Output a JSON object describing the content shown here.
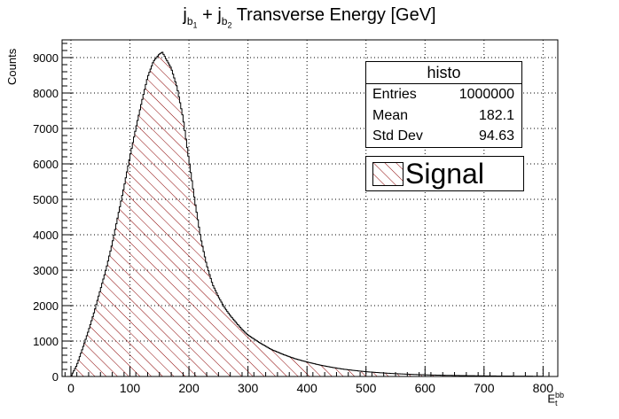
{
  "chart_data": {
    "type": "histogram",
    "title": {
      "base": "j",
      "sub1": "b",
      "subsub1": "1",
      "plus": "+ j",
      "sub2": "b",
      "subsub2": "2",
      "rest": "Transverse Energy [GeV]"
    },
    "ylabel": "Counts",
    "xlabel": {
      "base": "E",
      "sup": "bb",
      "sub": "t"
    },
    "xlim": [
      -15,
      825
    ],
    "ylim": [
      0,
      9500
    ],
    "xticks": [
      0,
      100,
      200,
      300,
      400,
      500,
      600,
      700,
      800
    ],
    "yticks": [
      0,
      1000,
      2000,
      3000,
      4000,
      5000,
      6000,
      7000,
      8000,
      9000
    ],
    "grid": true,
    "series": [
      {
        "name": "Signal",
        "color": "#8b0000",
        "fill": "hatched",
        "x": [
          0,
          10,
          20,
          30,
          40,
          50,
          60,
          70,
          80,
          90,
          100,
          110,
          120,
          130,
          140,
          150,
          155,
          160,
          170,
          180,
          190,
          200,
          210,
          220,
          230,
          240,
          250,
          260,
          270,
          280,
          290,
          300,
          320,
          340,
          360,
          380,
          400,
          420,
          440,
          460,
          480,
          500,
          520,
          540,
          560,
          580,
          600,
          620,
          640,
          660,
          680,
          700,
          720,
          740,
          760,
          780,
          800
        ],
        "values": [
          0,
          320,
          800,
          1300,
          1850,
          2450,
          3050,
          3750,
          4550,
          5350,
          6200,
          7000,
          7750,
          8450,
          8900,
          9100,
          9150,
          9000,
          8700,
          8150,
          7300,
          6100,
          4950,
          3900,
          3150,
          2600,
          2250,
          1950,
          1720,
          1520,
          1330,
          1170,
          950,
          760,
          620,
          500,
          410,
          330,
          265,
          210,
          170,
          135,
          110,
          88,
          72,
          58,
          47,
          38,
          31,
          26,
          21,
          17,
          14,
          12,
          10,
          8,
          6
        ]
      }
    ]
  },
  "stats": {
    "name": "histo",
    "rows": [
      {
        "label": "Entries",
        "value": "1000000"
      },
      {
        "label": "Mean",
        "value": "182.1"
      },
      {
        "label": "Std Dev",
        "value": "94.63"
      }
    ]
  },
  "legend": {
    "label": "Signal"
  }
}
